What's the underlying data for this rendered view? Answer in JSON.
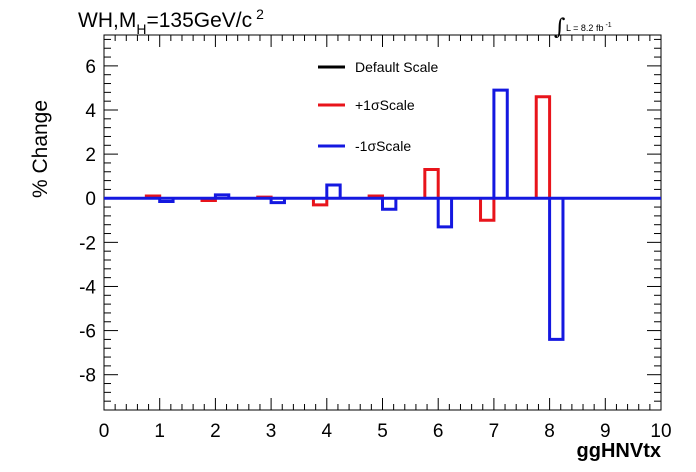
{
  "chart_data": {
    "type": "bar",
    "title": "WH,M_H=135GeV/c^2",
    "title_parts": {
      "main": "WH,M",
      "sub": "H",
      "rest": "=135GeV/c",
      "sup": "2"
    },
    "lumi": {
      "symbol": "∫",
      "text": "L = 8.2 fb",
      "sup": "-1"
    },
    "xlabel": "ggHNVtx",
    "ylabel": "% Change",
    "xlim": [
      0,
      10
    ],
    "ylim": [
      -9.6,
      7.4
    ],
    "x_ticks": [
      "0",
      "1",
      "2",
      "3",
      "4",
      "5",
      "6",
      "7",
      "8",
      "9",
      "10"
    ],
    "y_ticks": [
      "6",
      "4",
      "2",
      "0",
      "-2",
      "-4",
      "-6",
      "-8"
    ],
    "bins": [
      1,
      2,
      3,
      4,
      5,
      6,
      7,
      8
    ],
    "series": [
      {
        "name": "Default Scale",
        "color": "#000000",
        "values": [
          0,
          0,
          0,
          0,
          0,
          0,
          0,
          0
        ]
      },
      {
        "name": "+1σScale",
        "color": "#e8141b",
        "values": [
          0.1,
          -0.1,
          0.05,
          -0.3,
          0.1,
          1.3,
          -1.0,
          4.6
        ]
      },
      {
        "name": "-1σScale",
        "color": "#1418e0",
        "values": [
          -0.15,
          0.15,
          -0.2,
          0.6,
          -0.5,
          -1.3,
          4.9,
          -6.4
        ]
      }
    ],
    "legend_position": "top-center",
    "grid": false
  }
}
